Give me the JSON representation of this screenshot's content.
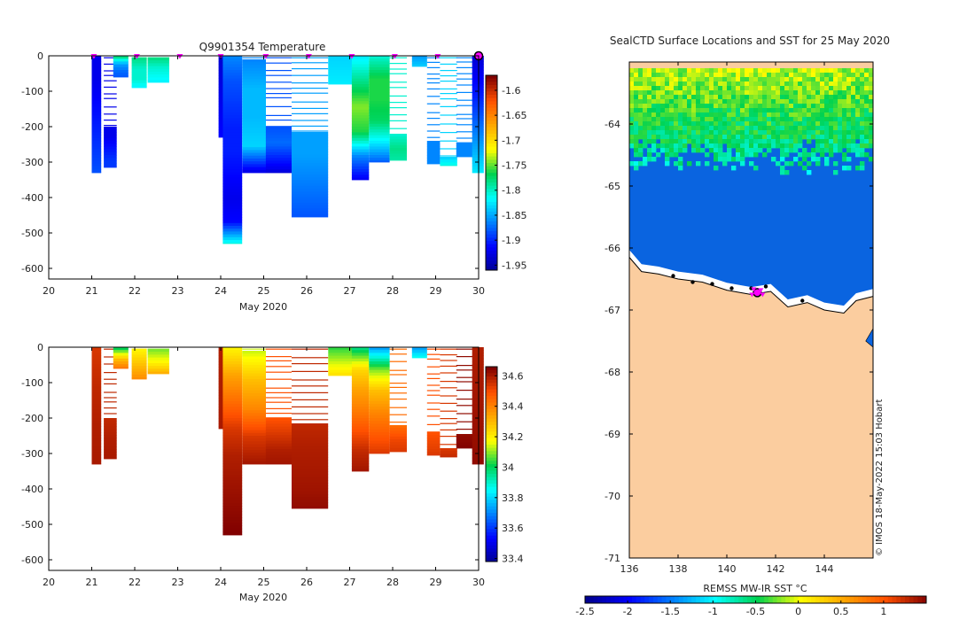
{
  "figure": {
    "temperature_title": "Q9901354  Temperature",
    "map_title": "SealCTD Surface Locations and SST for 25 May 2020",
    "x_axis_label": "May 2020",
    "credit": "© IMOS 18-May-2022 15:03 Hobart",
    "map_cbar_label": "REMSS MW-IR SST °C"
  },
  "colors": {
    "land": "#fbcd9f",
    "cold_sea": "#0a64e0",
    "marker": "#ff00ff",
    "axis": "#000000"
  },
  "chart_data": [
    {
      "id": "temperature",
      "type": "heatmap",
      "title": "Q9901354  Temperature",
      "xlabel": "May 2020",
      "ylabel": "",
      "x_ticks": [
        20,
        21,
        22,
        23,
        24,
        25,
        26,
        27,
        28,
        29,
        30
      ],
      "y_ticks": [
        0,
        -100,
        -200,
        -300,
        -400,
        -500,
        -600
      ],
      "xlim": [
        20,
        30
      ],
      "ylim": [
        -630,
        0
      ],
      "colorbar": {
        "ticks": [
          -1.6,
          -1.65,
          -1.7,
          -1.75,
          -1.8,
          -1.85,
          -1.9,
          -1.95
        ],
        "range": [
          -1.96,
          -1.57
        ]
      },
      "surface_markers_day": [
        21.05,
        22.05,
        23.05,
        24.0,
        25.05,
        26.05,
        27.05,
        28.05,
        29.05
      ],
      "last_marker_day": 30.0,
      "profiles": [
        {
          "day": 21.0,
          "width": 0.22,
          "bottom": -330,
          "values": [
            -1.92,
            -1.92,
            -1.91,
            -1.9,
            -1.89,
            -1.88
          ]
        },
        {
          "day": 21.28,
          "width": 0.3,
          "bottom": -315,
          "values": [
            -1.92,
            -1.92,
            -1.91,
            -1.9,
            -1.89,
            -1.89
          ],
          "sparse_top": -200
        },
        {
          "day": 21.5,
          "width": 0.35,
          "bottom": -60,
          "values": [
            -1.78,
            -1.85,
            -1.87,
            -1.88
          ]
        },
        {
          "day": 21.93,
          "width": 0.35,
          "bottom": -90,
          "values": [
            -1.78,
            -1.8,
            -1.8,
            -1.82
          ],
          "sparse_top": -5
        },
        {
          "day": 22.3,
          "width": 0.5,
          "bottom": -75,
          "values": [
            -1.78,
            -1.8,
            -1.81,
            -1.82
          ],
          "sparse_top": -5
        },
        {
          "day": 23.95,
          "width": 0.1,
          "bottom": -230,
          "values": [
            -1.93,
            -1.92,
            -1.91
          ]
        },
        {
          "day": 24.05,
          "width": 0.45,
          "bottom": -530,
          "values": [
            -1.86,
            -1.88,
            -1.89,
            -1.9,
            -1.9,
            -1.91,
            -1.92,
            -1.91,
            -1.8
          ]
        },
        {
          "day": 24.5,
          "width": 0.55,
          "bottom": -330,
          "values": [
            -1.86,
            -1.84,
            -1.84,
            -1.83,
            -1.93
          ],
          "sparse_top": -10
        },
        {
          "day": 25.05,
          "width": 0.6,
          "bottom": -330,
          "values": [
            -1.88,
            -1.87,
            -1.9,
            -1.93
          ],
          "sparse_top": -200
        },
        {
          "day": 25.65,
          "width": 0.85,
          "bottom": -455,
          "values": [
            -1.85,
            -1.85,
            -1.86,
            -1.87,
            -1.88
          ],
          "sparse_top": -215
        },
        {
          "day": 26.5,
          "width": 0.55,
          "bottom": -80,
          "values": [
            -1.83,
            -1.82
          ]
        },
        {
          "day": 27.05,
          "width": 0.4,
          "bottom": -350,
          "values": [
            -1.82,
            -1.78,
            -1.74,
            -1.76,
            -1.86,
            -1.92
          ]
        },
        {
          "day": 27.45,
          "width": 0.48,
          "bottom": -300,
          "values": [
            -1.8,
            -1.76,
            -1.76,
            -1.77,
            -1.82,
            -1.88
          ]
        },
        {
          "day": 27.93,
          "width": 0.4,
          "bottom": -295,
          "values": [
            -1.8,
            -1.78,
            -1.79
          ],
          "sparse_top": -220
        },
        {
          "day": 28.45,
          "width": 0.35,
          "bottom": -30,
          "values": [
            -1.85,
            -1.83
          ]
        },
        {
          "day": 28.8,
          "width": 0.3,
          "bottom": -305,
          "values": [
            -1.86,
            -1.86
          ],
          "sparse_top": -240
        },
        {
          "day": 29.1,
          "width": 0.4,
          "bottom": -310,
          "values": [
            -1.83,
            -1.8
          ],
          "sparse_top": -285
        },
        {
          "day": 29.48,
          "width": 0.4,
          "bottom": -285,
          "values": [
            -1.86,
            -1.86
          ],
          "sparse_top": -245
        },
        {
          "day": 29.85,
          "width": 0.27,
          "bottom": -330,
          "values": [
            -1.93,
            -1.9,
            -1.86,
            -1.82
          ]
        }
      ]
    },
    {
      "id": "salinity",
      "type": "heatmap",
      "title": "",
      "xlabel": "May 2020",
      "ylabel": "",
      "x_ticks": [
        20,
        21,
        22,
        23,
        24,
        25,
        26,
        27,
        28,
        29,
        30
      ],
      "y_ticks": [
        0,
        -100,
        -200,
        -300,
        -400,
        -500,
        -600
      ],
      "xlim": [
        20,
        30
      ],
      "ylim": [
        -630,
        0
      ],
      "colorbar": {
        "ticks": [
          34.6,
          34.4,
          34.2,
          34,
          33.8,
          33.6,
          33.4
        ],
        "range": [
          33.38,
          34.66
        ]
      },
      "profiles": [
        {
          "day": 21.0,
          "width": 0.22,
          "bottom": -330,
          "values": [
            34.55,
            34.58,
            34.6,
            34.61
          ]
        },
        {
          "day": 21.28,
          "width": 0.3,
          "bottom": -315,
          "values": [
            34.58,
            34.6,
            34.61
          ],
          "sparse_top": -200
        },
        {
          "day": 21.5,
          "width": 0.35,
          "bottom": -60,
          "values": [
            34.02,
            34.3,
            34.45
          ]
        },
        {
          "day": 21.93,
          "width": 0.35,
          "bottom": -90,
          "values": [
            34.2,
            34.3,
            34.4
          ],
          "sparse_top": -5
        },
        {
          "day": 22.3,
          "width": 0.5,
          "bottom": -75,
          "values": [
            34.1,
            34.2,
            34.35
          ],
          "sparse_top": -5
        },
        {
          "day": 23.95,
          "width": 0.1,
          "bottom": -230,
          "values": [
            34.6,
            34.61
          ]
        },
        {
          "day": 24.05,
          "width": 0.45,
          "bottom": -530,
          "values": [
            34.2,
            34.35,
            34.45,
            34.55,
            34.6,
            34.62,
            34.64,
            34.66
          ]
        },
        {
          "day": 24.5,
          "width": 0.55,
          "bottom": -330,
          "values": [
            34.15,
            34.3,
            34.4,
            34.55,
            34.62
          ],
          "sparse_top": -10
        },
        {
          "day": 25.05,
          "width": 0.6,
          "bottom": -330,
          "values": [
            34.5,
            34.55,
            34.6,
            34.62
          ],
          "sparse_top": -200
        },
        {
          "day": 25.65,
          "width": 0.85,
          "bottom": -455,
          "values": [
            34.58,
            34.6,
            34.61,
            34.62,
            34.64
          ],
          "sparse_top": -215
        },
        {
          "day": 26.5,
          "width": 0.55,
          "bottom": -80,
          "values": [
            34.05,
            34.25
          ]
        },
        {
          "day": 27.05,
          "width": 0.4,
          "bottom": -350,
          "values": [
            33.98,
            34.25,
            34.35,
            34.42,
            34.5,
            34.58,
            34.62
          ]
        },
        {
          "day": 27.45,
          "width": 0.48,
          "bottom": -300,
          "values": [
            33.75,
            34.1,
            34.3,
            34.4,
            34.48,
            34.55
          ]
        },
        {
          "day": 27.93,
          "width": 0.4,
          "bottom": -295,
          "values": [
            34.45,
            34.52,
            34.55
          ],
          "sparse_top": -220
        },
        {
          "day": 28.45,
          "width": 0.35,
          "bottom": -30,
          "values": [
            33.75,
            33.9
          ]
        },
        {
          "day": 28.8,
          "width": 0.3,
          "bottom": -305,
          "values": [
            34.5,
            34.55
          ],
          "sparse_top": -240
        },
        {
          "day": 29.1,
          "width": 0.4,
          "bottom": -310,
          "values": [
            34.55,
            34.58
          ],
          "sparse_top": -285
        },
        {
          "day": 29.48,
          "width": 0.4,
          "bottom": -285,
          "values": [
            34.64,
            34.66
          ],
          "sparse_top": -245
        },
        {
          "day": 29.85,
          "width": 0.27,
          "bottom": -330,
          "values": [
            34.6,
            34.62,
            34.64
          ]
        }
      ]
    },
    {
      "id": "map",
      "type": "heatmap",
      "title": "SealCTD Surface Locations and SST for 25 May 2020",
      "xlabel": "",
      "ylabel": "",
      "x_ticks": [
        136,
        138,
        140,
        142,
        144
      ],
      "y_ticks": [
        -64,
        -65,
        -66,
        -67,
        -68,
        -69,
        -70,
        -71
      ],
      "xlim": [
        136,
        146
      ],
      "ylim": [
        -71,
        -63
      ],
      "colorbar": {
        "label": "REMSS MW-IR SST °C",
        "ticks": [
          -2.5,
          -2,
          -1.5,
          -1,
          -0.5,
          0,
          0.5,
          1
        ],
        "range": [
          -2.5,
          1.5
        ]
      },
      "sst_data_top_lat": -63.1,
      "warm_band_bottom_lat": -64.5,
      "coast": [
        [
          136.0,
          -66.15
        ],
        [
          136.5,
          -66.38
        ],
        [
          137.2,
          -66.42
        ],
        [
          138.0,
          -66.5
        ],
        [
          139.0,
          -66.55
        ],
        [
          140.0,
          -66.68
        ],
        [
          141.0,
          -66.75
        ],
        [
          141.8,
          -66.7
        ],
        [
          142.5,
          -66.95
        ],
        [
          143.3,
          -66.88
        ],
        [
          144.0,
          -67.0
        ],
        [
          144.8,
          -67.05
        ],
        [
          145.3,
          -66.85
        ],
        [
          146.0,
          -66.78
        ]
      ],
      "seal_track": [
        [
          137.8,
          -66.45
        ],
        [
          138.6,
          -66.55
        ],
        [
          139.4,
          -66.58
        ],
        [
          140.2,
          -66.65
        ],
        [
          141.0,
          -66.65
        ],
        [
          141.6,
          -66.62
        ],
        [
          143.1,
          -66.85
        ]
      ],
      "latest_position": [
        141.25,
        -66.72
      ]
    }
  ]
}
